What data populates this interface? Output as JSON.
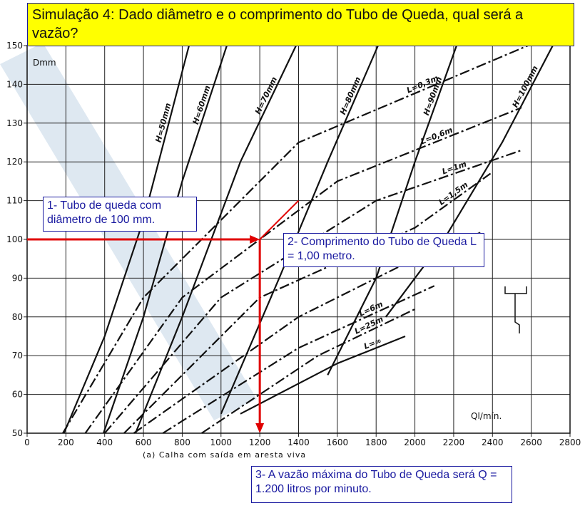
{
  "chart_data": {
    "type": "nomogram",
    "title": "Simulação 4: Dado diâmetro e o comprimento do Tubo de Queda, qual será a vazão?",
    "y_label": "Dmm",
    "x_label": "Ql/mín.",
    "caption": "(a) Calha com saída em aresta viva",
    "xlim": [
      0,
      2800
    ],
    "ylim": [
      50,
      150
    ],
    "xticks": [
      0,
      200,
      400,
      600,
      800,
      1000,
      1200,
      1400,
      1600,
      1800,
      2000,
      2200,
      2400,
      2600,
      2800
    ],
    "yticks": [
      50,
      60,
      70,
      80,
      90,
      100,
      110,
      120,
      130,
      140,
      150
    ],
    "grid": true,
    "series": [
      {
        "name": "H=50mm",
        "style": "solid",
        "color": "#111111",
        "x": [
          190,
          400,
          600,
          835
        ],
        "values": [
          50,
          75,
          105,
          150
        ]
      },
      {
        "name": "H=60mm",
        "style": "solid",
        "color": "#111111",
        "x": [
          394,
          600,
          800,
          1030
        ],
        "values": [
          50,
          80,
          115,
          150
        ]
      },
      {
        "name": "H=70mm",
        "style": "solid",
        "color": "#111111",
        "x": [
          559,
          800,
          1100,
          1387
        ],
        "values": [
          50,
          80,
          120,
          150
        ]
      },
      {
        "name": "H=80mm",
        "style": "solid",
        "color": "#111111",
        "x": [
          1000,
          1300,
          1550,
          1810
        ],
        "values": [
          55,
          90,
          120,
          150
        ]
      },
      {
        "name": "H=90mm",
        "style": "solid",
        "color": "#111111",
        "x": [
          1550,
          1800,
          2000,
          2215
        ],
        "values": [
          65,
          90,
          120,
          150
        ]
      },
      {
        "name": "H=100mm",
        "style": "solid",
        "color": "#111111",
        "x": [
          1850,
          2150,
          2450,
          2711
        ],
        "values": [
          80,
          100,
          125,
          150
        ]
      },
      {
        "name": "L=0,3m",
        "style": "dashdot",
        "color": "#111111",
        "x": [
          184,
          600,
          1400,
          2583
        ],
        "values": [
          50,
          85,
          125,
          150
        ]
      },
      {
        "name": "L=0,6m",
        "style": "dashdot",
        "color": "#111111",
        "x": [
          300,
          800,
          1600,
          2550
        ],
        "values": [
          50,
          85,
          115,
          134
        ]
      },
      {
        "name": "L=1m",
        "style": "dashdot",
        "color": "#111111",
        "x": [
          400,
          1000,
          1800,
          2550
        ],
        "values": [
          50,
          85,
          110,
          123
        ]
      },
      {
        "name": "L=1,5m",
        "style": "dashdot",
        "color": "#111111",
        "x": [
          500,
          1200,
          2000,
          2390
        ],
        "values": [
          50,
          85,
          103,
          117
        ]
      },
      {
        "name": "L=2m",
        "style": "dashdot",
        "color": "#111111",
        "x": [
          550,
          1400,
          2000,
          2350
        ],
        "values": [
          50,
          80,
          95,
          102
        ]
      },
      {
        "name": "L=6m",
        "style": "dashdot",
        "color": "#111111",
        "x": [
          700,
          1400,
          2100
        ],
        "values": [
          50,
          72,
          88
        ]
      },
      {
        "name": "L=25m",
        "style": "dashdot",
        "color": "#111111",
        "x": [
          900,
          1500,
          2000
        ],
        "values": [
          50,
          70,
          82
        ]
      },
      {
        "name": "L=∞",
        "style": "solid",
        "color": "#111111",
        "x": [
          1100,
          1600,
          1950
        ],
        "values": [
          55,
          68,
          75
        ]
      }
    ],
    "reading": {
      "x": 1200,
      "y": 100,
      "color": "#e00000"
    },
    "annotations": [
      "1- Tubo de queda com diâmetro de 100 mm.",
      "2- Comprimento do Tubo de Queda L = 1,00 metro.",
      "3- A vazão máxima do Tubo de Queda será Q = 1.200 litros por minuto."
    ]
  }
}
